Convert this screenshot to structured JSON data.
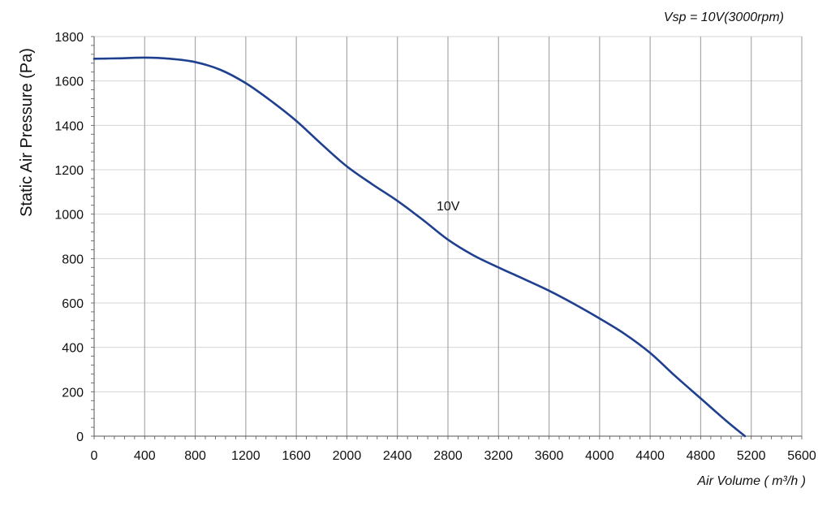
{
  "chart_data": {
    "type": "line",
    "title": "",
    "annotation_top_right": "Vsp = 10V(3000rpm)",
    "xlabel": "Air Volume ( m³/h )",
    "ylabel": "Static Air Pressure  (Pa)",
    "xlim": [
      0,
      5600
    ],
    "ylim": [
      0,
      1800
    ],
    "x_ticks": [
      0,
      400,
      800,
      1200,
      1600,
      2000,
      2400,
      2800,
      3200,
      3600,
      4000,
      4400,
      4800,
      5200,
      5600
    ],
    "y_ticks": [
      0,
      200,
      400,
      600,
      800,
      1000,
      1200,
      1400,
      1600,
      1800
    ],
    "grid": true,
    "series": [
      {
        "name": "10V",
        "color": "#1f3f8f",
        "x": [
          0,
          200,
          400,
          600,
          800,
          1000,
          1200,
          1400,
          1600,
          1800,
          2000,
          2200,
          2400,
          2600,
          2800,
          3000,
          3200,
          3400,
          3600,
          3800,
          4000,
          4200,
          4400,
          4600,
          4800,
          5000,
          5150
        ],
        "y": [
          1700,
          1702,
          1705,
          1700,
          1685,
          1650,
          1590,
          1510,
          1420,
          1315,
          1215,
          1135,
          1060,
          975,
          885,
          815,
          760,
          708,
          655,
          595,
          530,
          460,
          375,
          270,
          170,
          70,
          0
        ]
      }
    ]
  },
  "colors": {
    "grid_vertical": "#a8a8a8",
    "grid_horizontal": "#d4d4d4",
    "axis": "#555555",
    "line": "#1f3f8f"
  }
}
